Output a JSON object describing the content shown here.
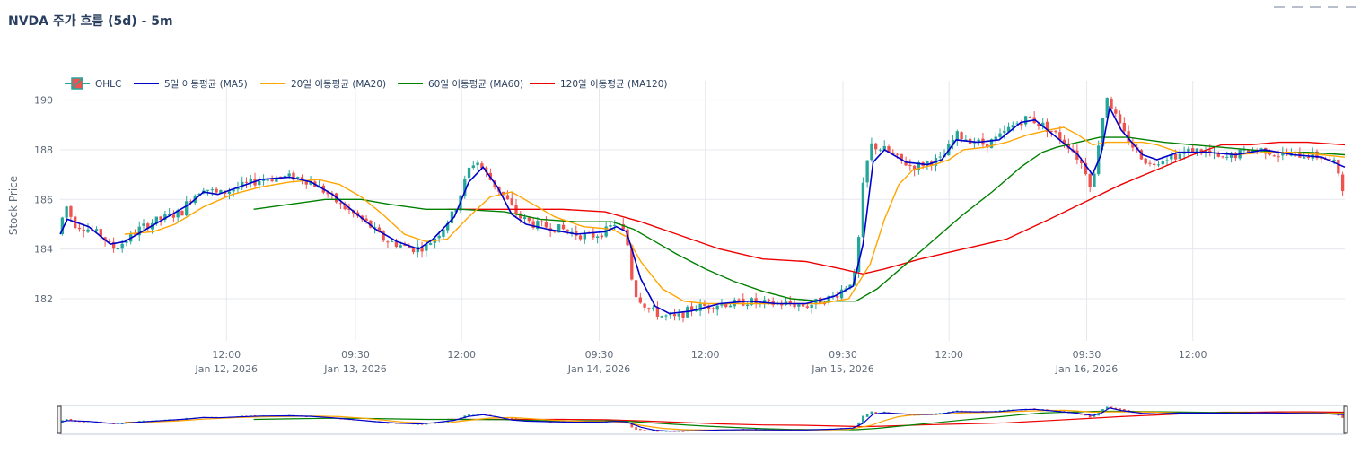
{
  "title": "NVDA 주가 흐름 (5d) - 5m",
  "colors": {
    "up": "#26a69a",
    "down": "#ef5350",
    "ma5": "#0000cc",
    "ma20": "#ffa500",
    "ma60": "#008000",
    "ma120": "#ee0000",
    "grid": "#e5e8ee",
    "axis_text": "#5f6b7a"
  },
  "chart_data": {
    "type": "candlestick",
    "title": "NVDA 주가 흐름 (5d) - 5m",
    "ylabel": "Stock Price",
    "xlabel": "",
    "ylim": [
      180.3,
      190.6
    ],
    "yticks": [
      182,
      184,
      186,
      188,
      190
    ],
    "grid": true,
    "legend_position": "top-left",
    "range_slider": true,
    "x_ticks": [
      {
        "t": 11.6,
        "top": "12:00",
        "bottom": "Jan 12, 2026"
      },
      {
        "t": 20.6,
        "top": "09:30",
        "bottom": "Jan 13, 2026"
      },
      {
        "t": 28.0,
        "top": "12:00",
        "bottom": ""
      },
      {
        "t": 37.6,
        "top": "09:30",
        "bottom": "Jan 14, 2026"
      },
      {
        "t": 45.0,
        "top": "12:00",
        "bottom": ""
      },
      {
        "t": 54.6,
        "top": "09:30",
        "bottom": "Jan 15, 2026"
      },
      {
        "t": 62.0,
        "top": "12:00",
        "bottom": ""
      },
      {
        "t": 71.6,
        "top": "09:30",
        "bottom": "Jan 16, 2026"
      },
      {
        "t": 79.0,
        "top": "12:00",
        "bottom": ""
      }
    ],
    "legend": [
      {
        "key": "ohlc",
        "label": "OHLC"
      },
      {
        "key": "ma5",
        "label": "5일 이동평균 (MA5)"
      },
      {
        "key": "ma20",
        "label": "20일 이동평균 (MA20)"
      },
      {
        "key": "ma60",
        "label": "60일 이동평균 (MA60)"
      },
      {
        "key": "ma120",
        "label": "120일 이동평균 (MA120)"
      }
    ],
    "price_path": [
      [
        0,
        184.6
      ],
      [
        0.3,
        185.9
      ],
      [
        1.0,
        185.0
      ],
      [
        2.0,
        184.8
      ],
      [
        3.0,
        184.5
      ],
      [
        3.6,
        184.0
      ],
      [
        4.5,
        184.3
      ],
      [
        5.5,
        184.8
      ],
      [
        6.5,
        185.1
      ],
      [
        7.5,
        185.3
      ],
      [
        8.5,
        185.5
      ],
      [
        9.0,
        186.0
      ],
      [
        10.0,
        186.5
      ],
      [
        11.0,
        186.2
      ],
      [
        12.0,
        186.4
      ],
      [
        13.0,
        186.6
      ],
      [
        14.0,
        186.8
      ],
      [
        15.5,
        186.9
      ],
      [
        16.5,
        186.9
      ],
      [
        17.5,
        186.7
      ],
      [
        18.5,
        186.3
      ],
      [
        19.5,
        185.8
      ],
      [
        20.5,
        185.4
      ],
      [
        21.5,
        185.0
      ],
      [
        22.5,
        184.4
      ],
      [
        23.5,
        184.2
      ],
      [
        24.5,
        184.0
      ],
      [
        25.5,
        184.1
      ],
      [
        26.5,
        184.7
      ],
      [
        27.5,
        185.5
      ],
      [
        28.5,
        187.2
      ],
      [
        29.0,
        187.6
      ],
      [
        30.0,
        186.8
      ],
      [
        31.0,
        186.1
      ],
      [
        32.0,
        185.3
      ],
      [
        33.0,
        185.0
      ],
      [
        34.0,
        184.9
      ],
      [
        35.0,
        184.8
      ],
      [
        36.0,
        184.6
      ],
      [
        37.0,
        184.5
      ],
      [
        38.0,
        184.7
      ],
      [
        38.8,
        185.1
      ],
      [
        39.5,
        184.5
      ],
      [
        40.0,
        182.3
      ],
      [
        41.0,
        181.6
      ],
      [
        42.0,
        181.3
      ],
      [
        43.0,
        181.2
      ],
      [
        44.0,
        181.6
      ],
      [
        45.0,
        181.7
      ],
      [
        46.0,
        181.8
      ],
      [
        47.0,
        181.8
      ],
      [
        48.0,
        181.9
      ],
      [
        49.0,
        181.8
      ],
      [
        50.0,
        181.8
      ],
      [
        51.0,
        181.8
      ],
      [
        52.0,
        181.7
      ],
      [
        53.0,
        181.9
      ],
      [
        54.0,
        182.1
      ],
      [
        55.0,
        182.6
      ],
      [
        55.5,
        183.0
      ],
      [
        56.0,
        186.5
      ],
      [
        56.5,
        188.2
      ],
      [
        57.5,
        188.0
      ],
      [
        58.5,
        187.6
      ],
      [
        59.5,
        187.3
      ],
      [
        60.5,
        187.5
      ],
      [
        61.5,
        187.6
      ],
      [
        62.5,
        188.6
      ],
      [
        63.5,
        188.4
      ],
      [
        64.5,
        188.2
      ],
      [
        65.5,
        188.5
      ],
      [
        66.5,
        189.0
      ],
      [
        67.5,
        189.3
      ],
      [
        68.5,
        189.0
      ],
      [
        69.5,
        188.6
      ],
      [
        70.5,
        188.1
      ],
      [
        71.5,
        187.2
      ],
      [
        72.0,
        186.4
      ],
      [
        72.5,
        188.6
      ],
      [
        73.0,
        190.2
      ],
      [
        73.5,
        189.5
      ],
      [
        74.0,
        188.8
      ],
      [
        75.0,
        188.0
      ],
      [
        76.0,
        187.4
      ],
      [
        77.0,
        187.7
      ],
      [
        78.0,
        187.8
      ],
      [
        79.0,
        188.0
      ],
      [
        80.0,
        187.9
      ],
      [
        81.0,
        187.6
      ],
      [
        82.0,
        187.8
      ],
      [
        83.0,
        188.0
      ],
      [
        84.0,
        188.0
      ],
      [
        85.0,
        187.8
      ],
      [
        86.0,
        187.8
      ],
      [
        87.0,
        187.8
      ],
      [
        88.0,
        187.7
      ],
      [
        89.0,
        187.4
      ],
      [
        89.6,
        186.2
      ]
    ],
    "ma5": [
      [
        0,
        184.6
      ],
      [
        0.5,
        185.2
      ],
      [
        2.0,
        184.9
      ],
      [
        3.5,
        184.2
      ],
      [
        4.5,
        184.3
      ],
      [
        6.0,
        184.8
      ],
      [
        7.5,
        185.3
      ],
      [
        9.0,
        185.8
      ],
      [
        10.0,
        186.3
      ],
      [
        11.0,
        186.2
      ],
      [
        12.5,
        186.5
      ],
      [
        14.0,
        186.8
      ],
      [
        16.0,
        186.9
      ],
      [
        17.5,
        186.7
      ],
      [
        19.0,
        186.2
      ],
      [
        20.5,
        185.5
      ],
      [
        22.0,
        184.8
      ],
      [
        23.5,
        184.3
      ],
      [
        25.0,
        184.0
      ],
      [
        26.0,
        184.4
      ],
      [
        27.5,
        185.3
      ],
      [
        28.5,
        186.7
      ],
      [
        29.5,
        187.3
      ],
      [
        30.5,
        186.5
      ],
      [
        31.5,
        185.4
      ],
      [
        32.5,
        185.0
      ],
      [
        34.0,
        184.8
      ],
      [
        36.0,
        184.6
      ],
      [
        38.0,
        184.7
      ],
      [
        38.8,
        184.9
      ],
      [
        39.5,
        184.7
      ],
      [
        40.5,
        182.8
      ],
      [
        41.5,
        181.7
      ],
      [
        42.5,
        181.4
      ],
      [
        44.0,
        181.5
      ],
      [
        46.0,
        181.8
      ],
      [
        48.0,
        181.9
      ],
      [
        50.0,
        181.8
      ],
      [
        52.0,
        181.8
      ],
      [
        54.0,
        182.1
      ],
      [
        55.3,
        182.5
      ],
      [
        56.0,
        184.2
      ],
      [
        56.7,
        187.5
      ],
      [
        57.5,
        188.0
      ],
      [
        59.0,
        187.5
      ],
      [
        60.5,
        187.4
      ],
      [
        61.5,
        187.6
      ],
      [
        62.5,
        188.4
      ],
      [
        64.0,
        188.3
      ],
      [
        65.5,
        188.4
      ],
      [
        67.0,
        189.1
      ],
      [
        68.0,
        189.2
      ],
      [
        69.5,
        188.5
      ],
      [
        71.0,
        187.8
      ],
      [
        72.0,
        187.0
      ],
      [
        72.6,
        187.8
      ],
      [
        73.2,
        189.7
      ],
      [
        74.0,
        188.8
      ],
      [
        75.5,
        187.8
      ],
      [
        76.5,
        187.6
      ],
      [
        78.0,
        187.9
      ],
      [
        80.0,
        187.9
      ],
      [
        82.0,
        187.8
      ],
      [
        84.0,
        188.0
      ],
      [
        86.0,
        187.8
      ],
      [
        88.0,
        187.7
      ],
      [
        89.6,
        187.3
      ]
    ],
    "ma20": [
      [
        4.5,
        184.6
      ],
      [
        6.5,
        184.7
      ],
      [
        8.0,
        185.0
      ],
      [
        10.0,
        185.7
      ],
      [
        12.0,
        186.2
      ],
      [
        14.0,
        186.5
      ],
      [
        16.0,
        186.7
      ],
      [
        18.0,
        186.8
      ],
      [
        19.5,
        186.6
      ],
      [
        21.0,
        186.1
      ],
      [
        22.5,
        185.4
      ],
      [
        24.0,
        184.6
      ],
      [
        25.5,
        184.3
      ],
      [
        27.0,
        184.4
      ],
      [
        28.5,
        185.3
      ],
      [
        30.0,
        186.1
      ],
      [
        31.5,
        186.3
      ],
      [
        33.0,
        185.8
      ],
      [
        34.5,
        185.3
      ],
      [
        36.5,
        184.9
      ],
      [
        38.5,
        184.8
      ],
      [
        39.5,
        184.5
      ],
      [
        40.5,
        183.5
      ],
      [
        42.0,
        182.4
      ],
      [
        43.5,
        181.9
      ],
      [
        45.0,
        181.8
      ],
      [
        47.0,
        181.8
      ],
      [
        49.0,
        181.8
      ],
      [
        51.0,
        181.8
      ],
      [
        53.0,
        181.8
      ],
      [
        55.0,
        182.0
      ],
      [
        56.5,
        183.4
      ],
      [
        57.5,
        185.2
      ],
      [
        58.5,
        186.6
      ],
      [
        59.5,
        187.2
      ],
      [
        61.0,
        187.4
      ],
      [
        62.0,
        187.6
      ],
      [
        63.0,
        188.0
      ],
      [
        64.5,
        188.1
      ],
      [
        66.0,
        188.3
      ],
      [
        67.5,
        188.6
      ],
      [
        69.0,
        188.8
      ],
      [
        70.0,
        188.9
      ],
      [
        71.0,
        188.6
      ],
      [
        72.0,
        188.2
      ],
      [
        73.0,
        188.3
      ],
      [
        74.0,
        188.3
      ],
      [
        75.5,
        188.3
      ],
      [
        76.5,
        188.2
      ],
      [
        78.0,
        187.9
      ],
      [
        80.0,
        187.9
      ],
      [
        82.0,
        187.8
      ],
      [
        84.0,
        187.9
      ],
      [
        86.0,
        187.9
      ],
      [
        88.0,
        187.8
      ],
      [
        89.6,
        187.7
      ]
    ],
    "ma60": [
      [
        13.5,
        185.6
      ],
      [
        16.0,
        185.8
      ],
      [
        18.5,
        186.0
      ],
      [
        21.0,
        186.0
      ],
      [
        23.0,
        185.8
      ],
      [
        25.5,
        185.6
      ],
      [
        28.0,
        185.6
      ],
      [
        31.0,
        185.5
      ],
      [
        33.5,
        185.2
      ],
      [
        36.0,
        185.1
      ],
      [
        38.5,
        185.1
      ],
      [
        40.0,
        184.8
      ],
      [
        41.5,
        184.3
      ],
      [
        43.0,
        183.8
      ],
      [
        45.0,
        183.2
      ],
      [
        47.0,
        182.7
      ],
      [
        49.0,
        182.3
      ],
      [
        51.0,
        182.0
      ],
      [
        53.0,
        181.9
      ],
      [
        55.5,
        181.9
      ],
      [
        57.0,
        182.4
      ],
      [
        59.0,
        183.4
      ],
      [
        61.0,
        184.4
      ],
      [
        63.0,
        185.4
      ],
      [
        65.0,
        186.3
      ],
      [
        67.0,
        187.3
      ],
      [
        68.5,
        187.9
      ],
      [
        69.5,
        188.1
      ],
      [
        71.0,
        188.3
      ],
      [
        72.5,
        188.5
      ],
      [
        74.5,
        188.5
      ],
      [
        77.0,
        188.3
      ],
      [
        79.0,
        188.2
      ],
      [
        81.0,
        188.1
      ],
      [
        83.0,
        188.0
      ],
      [
        85.0,
        187.9
      ],
      [
        87.0,
        187.9
      ],
      [
        89.6,
        187.8
      ]
    ],
    "ma120": [
      [
        27.0,
        185.6
      ],
      [
        31.0,
        185.6
      ],
      [
        35.0,
        185.6
      ],
      [
        38.0,
        185.5
      ],
      [
        40.5,
        185.1
      ],
      [
        43.0,
        184.6
      ],
      [
        46.0,
        184.0
      ],
      [
        49.0,
        183.6
      ],
      [
        52.0,
        183.5
      ],
      [
        54.5,
        183.2
      ],
      [
        56.0,
        183.0
      ],
      [
        57.5,
        183.2
      ],
      [
        60.0,
        183.6
      ],
      [
        63.0,
        184.0
      ],
      [
        66.0,
        184.4
      ],
      [
        69.0,
        185.2
      ],
      [
        71.5,
        185.9
      ],
      [
        74.0,
        186.6
      ],
      [
        76.5,
        187.2
      ],
      [
        79.0,
        187.8
      ],
      [
        81.0,
        188.2
      ],
      [
        83.0,
        188.2
      ],
      [
        85.0,
        188.3
      ],
      [
        87.0,
        188.3
      ],
      [
        89.6,
        188.2
      ]
    ]
  }
}
